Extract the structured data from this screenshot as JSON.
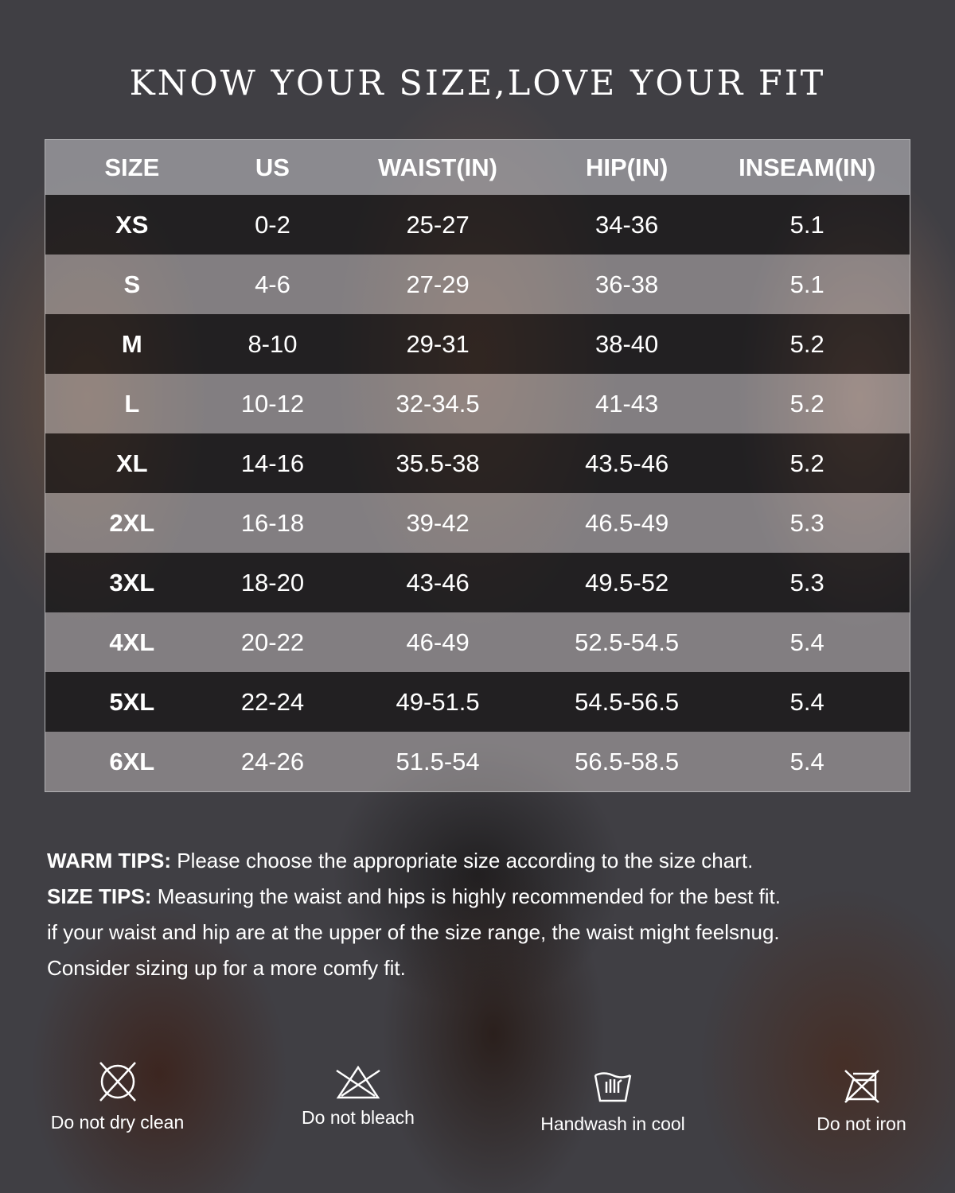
{
  "title": "KNOW YOUR SIZE,LOVE YOUR FIT",
  "table": {
    "headers": [
      "SIZE",
      "US",
      "WAIST(IN)",
      "HIP(IN)",
      "INSEAM(IN)"
    ],
    "rows": [
      [
        "XS",
        "0-2",
        "25-27",
        "34-36",
        "5.1"
      ],
      [
        "S",
        "4-6",
        "27-29",
        "36-38",
        "5.1"
      ],
      [
        "M",
        "8-10",
        "29-31",
        "38-40",
        "5.2"
      ],
      [
        "L",
        "10-12",
        "32-34.5",
        "41-43",
        "5.2"
      ],
      [
        "XL",
        "14-16",
        "35.5-38",
        "43.5-46",
        "5.2"
      ],
      [
        "2XL",
        "16-18",
        "39-42",
        "46.5-49",
        "5.3"
      ],
      [
        "3XL",
        "18-20",
        "43-46",
        "49.5-52",
        "5.3"
      ],
      [
        "4XL",
        "20-22",
        "46-49",
        "52.5-54.5",
        "5.4"
      ],
      [
        "5XL",
        "22-24",
        "49-51.5",
        "54.5-56.5",
        "5.4"
      ],
      [
        "6XL",
        "24-26",
        "51.5-54",
        "56.5-58.5",
        "5.4"
      ]
    ]
  },
  "tips": {
    "warm_label": "WARM TIPS:",
    "warm_text": " Please choose the appropriate size according to the size chart.",
    "size_label": "SIZE TIPS:",
    "size_text": " Measuring the waist and hips is highly recommended for the best fit.",
    "line3": "if your waist and hip are at the upper of the size range, the waist might feelsnug.",
    "line4": "Consider sizing up for a more comfy fit."
  },
  "care": [
    {
      "icon": "do-not-dry-clean-icon",
      "label": "Do not dry clean"
    },
    {
      "icon": "do-not-bleach-icon",
      "label": "Do not bleach"
    },
    {
      "icon": "handwash-icon",
      "label": "Handwash in cool"
    },
    {
      "icon": "do-not-iron-icon",
      "label": "Do not iron"
    }
  ]
}
